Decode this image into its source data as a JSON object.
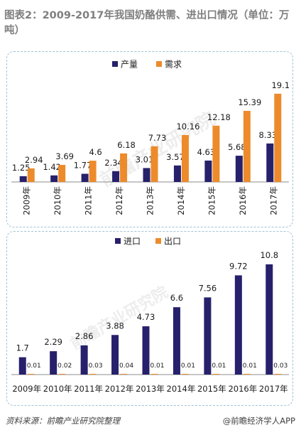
{
  "title": "图表2：2009-2017年我国奶酪供需、进出口情况（单位：万吨）",
  "watermark": "前瞻产业研究院",
  "footer": {
    "source_label": "资料来源：",
    "source_text": "前瞻产业研究院整理",
    "brand": "@前瞻经济学人APP"
  },
  "colors": {
    "navy": "#27206b",
    "orange": "#ed8b2c",
    "border": "#9fc3d8",
    "text": "#1a1a1a"
  },
  "chart_data": [
    {
      "type": "bar",
      "categories": [
        "2009年",
        "2010年",
        "2011年",
        "2012年",
        "2013年",
        "2014年",
        "2015年",
        "2016年",
        "2017年"
      ],
      "series": [
        {
          "name": "产量",
          "color": "#27206b",
          "values": [
            1.25,
            1.42,
            1.77,
            2.34,
            3.01,
            3.57,
            4.63,
            5.68,
            8.33
          ]
        },
        {
          "name": "需求",
          "color": "#ed8b2c",
          "values": [
            2.94,
            3.69,
            4.6,
            6.18,
            7.73,
            10.16,
            12.18,
            15.39,
            19.1
          ]
        }
      ],
      "value_labels": {
        "产量": [
          "1.25",
          "1.42",
          "1.77",
          "2.34",
          "3.01",
          "3.57",
          "4.63",
          "5.68",
          "8.33"
        ],
        "需求": [
          "2.94",
          "3.69",
          "4.6",
          "6.18",
          "7.73",
          "10.16",
          "12.18",
          "15.39",
          "19.1"
        ]
      },
      "ylim": [
        0,
        20
      ],
      "legend": "top-center",
      "grid": false
    },
    {
      "type": "bar",
      "categories": [
        "2009年",
        "2010年",
        "2011年",
        "2012年",
        "2013年",
        "2014年",
        "2015年",
        "2016年",
        "2017年"
      ],
      "series": [
        {
          "name": "进口",
          "color": "#27206b",
          "values": [
            1.7,
            2.29,
            2.86,
            3.88,
            4.73,
            6.6,
            7.56,
            9.72,
            10.8
          ]
        },
        {
          "name": "出口",
          "color": "#ed8b2c",
          "values": [
            0.01,
            0.02,
            0.03,
            0.04,
            0.01,
            0.01,
            0.01,
            0.01,
            0.03
          ]
        }
      ],
      "value_labels": {
        "进口": [
          "1.7",
          "2.29",
          "2.86",
          "3.88",
          "4.73",
          "6.6",
          "7.56",
          "9.72",
          "10.8"
        ],
        "出口": [
          "0.01",
          "0.02",
          "0.03",
          "0.04",
          "0.01",
          "0.01",
          "0.01",
          "0.01",
          "0.03"
        ]
      },
      "ylim": [
        0,
        11
      ],
      "legend": "top-center",
      "grid": false
    }
  ]
}
